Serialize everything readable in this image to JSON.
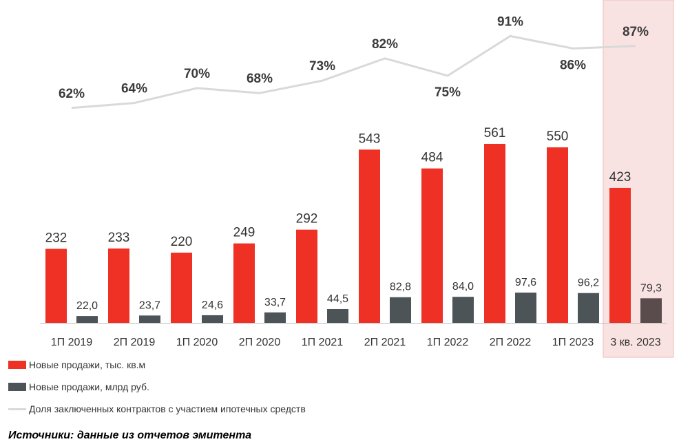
{
  "chart_data": {
    "type": "bar",
    "categories": [
      "1П 2019",
      "2П 2019",
      "1П 2020",
      "2П 2020",
      "1П 2021",
      "2П 2021",
      "1П 2022",
      "2П 2022",
      "1П 2023",
      "3 кв. 2023"
    ],
    "series": [
      {
        "name": "Новые продажи, тыс. кв.м",
        "type": "bar",
        "color": "#ee3124",
        "values": [
          232,
          233,
          220,
          249,
          292,
          543,
          484,
          561,
          550,
          423
        ],
        "labels": [
          "232",
          "233",
          "220",
          "249",
          "292",
          "543",
          "484",
          "561",
          "550",
          "423"
        ]
      },
      {
        "name": "Новые продажи, млрд руб.",
        "type": "bar",
        "color": "#4d5457",
        "values": [
          22.0,
          23.7,
          24.6,
          33.7,
          44.5,
          82.8,
          84.0,
          97.6,
          96.2,
          79.3
        ],
        "labels": [
          "22,0",
          "23,7",
          "24,6",
          "33,7",
          "44,5",
          "82,8",
          "84,0",
          "97,6",
          "96,2",
          "79,3"
        ]
      },
      {
        "name": "Доля заключенных контрактов с участием ипотечных средств",
        "type": "line",
        "color": "#d9d9d9",
        "values": [
          62,
          64,
          70,
          68,
          73,
          82,
          75,
          91,
          86,
          87
        ],
        "labels": [
          "62%",
          "64%",
          "70%",
          "68%",
          "73%",
          "82%",
          "75%",
          "91%",
          "86%",
          "87%"
        ]
      }
    ],
    "highlight_category": "3 кв. 2023",
    "highlight_color": "#f9e3e2",
    "last_dark_bar_color": "#5a4c4c"
  },
  "source_text": "Источники: данные из отчетов эмитента"
}
